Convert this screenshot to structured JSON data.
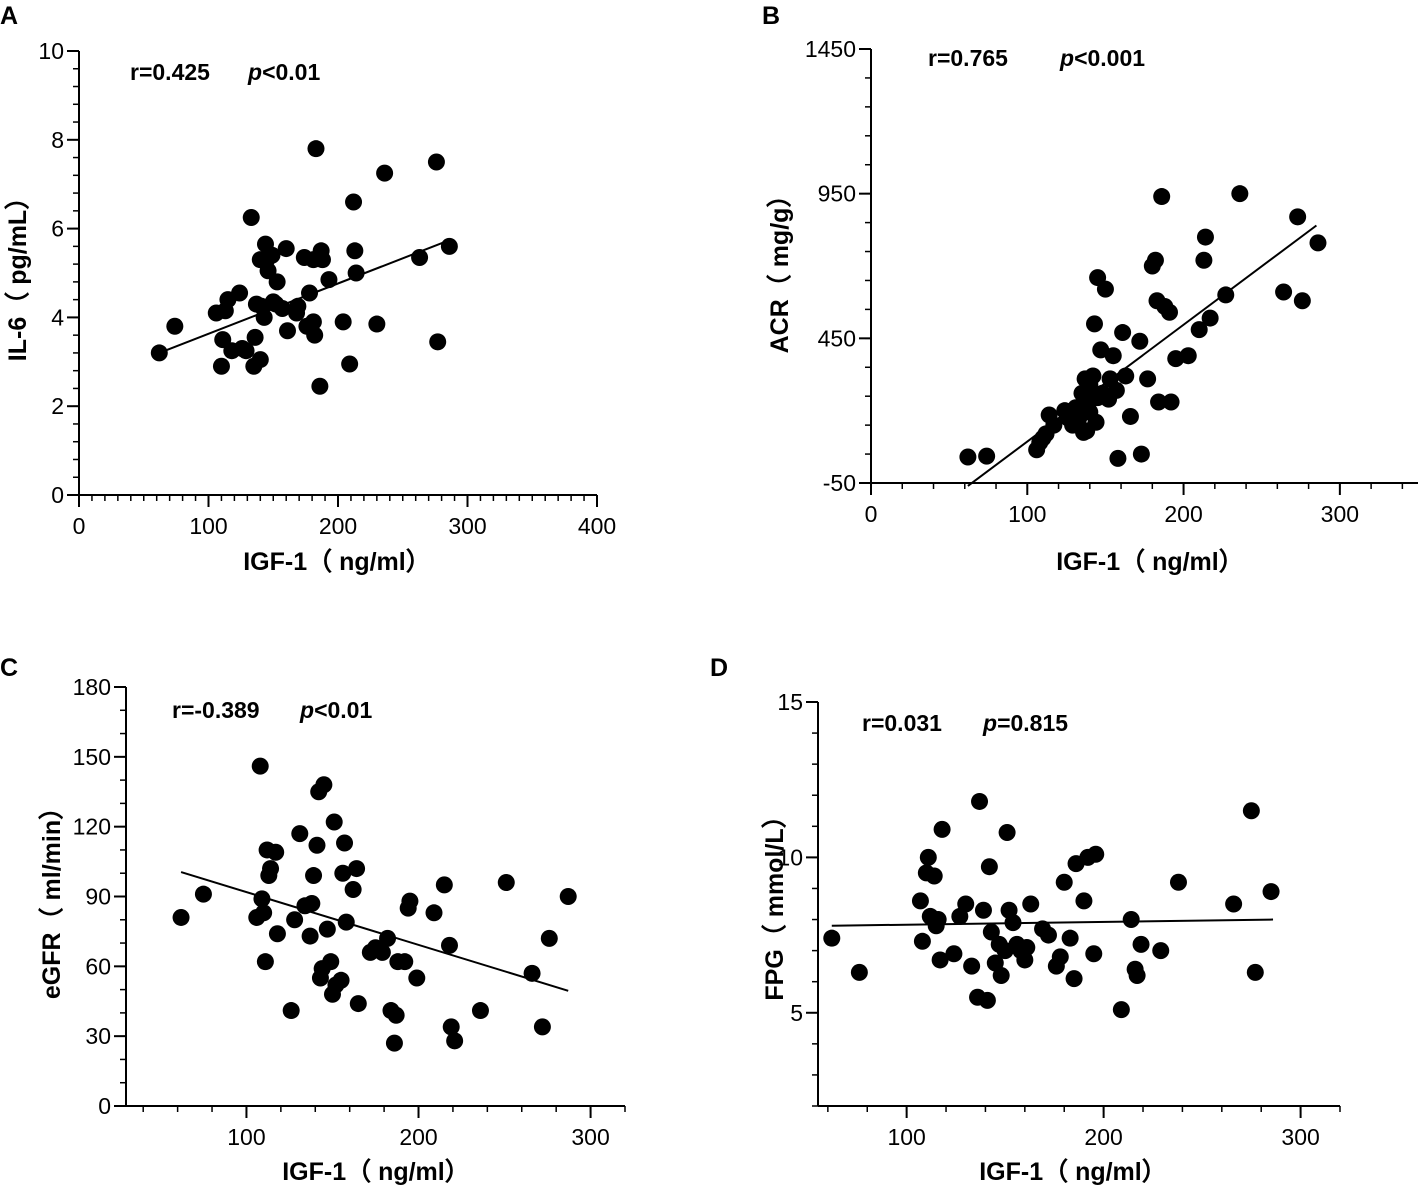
{
  "chart_data": [
    {
      "panel": "A",
      "type": "scatter",
      "title": "",
      "xlabel": "IGF-1（ ng/ml）",
      "ylabel": "IL-6（ pg/mL）",
      "xlim": [
        0,
        400
      ],
      "ylim": [
        0,
        10
      ],
      "xticks": [
        0,
        100,
        200,
        300,
        400
      ],
      "yticks": [
        0,
        2,
        4,
        6,
        8,
        10
      ],
      "grid": false,
      "annotation": {
        "r": "r=0.425",
        "p_symbol": "p",
        "p_value": "<0.01"
      },
      "regression": {
        "x": [
          62,
          287
        ],
        "y": [
          3.2,
          5.75
        ]
      },
      "points": [
        [
          62,
          3.2
        ],
        [
          74,
          3.8
        ],
        [
          106,
          4.1
        ],
        [
          110,
          2.9
        ],
        [
          111,
          3.5
        ],
        [
          113,
          4.15
        ],
        [
          115,
          4.4
        ],
        [
          118,
          3.25
        ],
        [
          124,
          4.55
        ],
        [
          126,
          3.3
        ],
        [
          129,
          3.25
        ],
        [
          133,
          6.25
        ],
        [
          135,
          2.9
        ],
        [
          136,
          3.55
        ],
        [
          137,
          4.3
        ],
        [
          140,
          3.05
        ],
        [
          140,
          5.3
        ],
        [
          141,
          4.25
        ],
        [
          143,
          4.0
        ],
        [
          144,
          5.65
        ],
        [
          145,
          5.3
        ],
        [
          146,
          5.05
        ],
        [
          149,
          5.4
        ],
        [
          150,
          4.35
        ],
        [
          152,
          4.3
        ],
        [
          153,
          4.8
        ],
        [
          157,
          4.2
        ],
        [
          160,
          5.55
        ],
        [
          161,
          3.7
        ],
        [
          168,
          4.1
        ],
        [
          169,
          4.25
        ],
        [
          174,
          5.35
        ],
        [
          176,
          3.8
        ],
        [
          178,
          4.55
        ],
        [
          181,
          3.9
        ],
        [
          181,
          5.3
        ],
        [
          182,
          3.6
        ],
        [
          183,
          7.8
        ],
        [
          186,
          2.45
        ],
        [
          187,
          5.5
        ],
        [
          188,
          5.3
        ],
        [
          193,
          4.85
        ],
        [
          204,
          3.9
        ],
        [
          209,
          2.95
        ],
        [
          212,
          6.6
        ],
        [
          213,
          5.5
        ],
        [
          214,
          5.0
        ],
        [
          230,
          3.85
        ],
        [
          236,
          7.25
        ],
        [
          263,
          5.35
        ],
        [
          276,
          7.5
        ],
        [
          277,
          3.45
        ],
        [
          286,
          5.6
        ]
      ]
    },
    {
      "panel": "B",
      "type": "scatter",
      "title": "",
      "xlabel": "IGF-1（ ng/ml）",
      "ylabel": "ACR（ mg/g）",
      "xlim": [
        0,
        350
      ],
      "ylim": [
        -50,
        1450
      ],
      "xticks": [
        0,
        100,
        200,
        300
      ],
      "yticks": [
        -50,
        450,
        950,
        1450
      ],
      "grid": false,
      "annotation": {
        "r": "r=0.765",
        "p_symbol": "p",
        "p_value": "<0.001"
      },
      "regression": {
        "x": [
          62,
          285
        ],
        "y": [
          -60,
          840
        ]
      },
      "points": [
        [
          62,
          40
        ],
        [
          74,
          43
        ],
        [
          106,
          65
        ],
        [
          108,
          90
        ],
        [
          110,
          105
        ],
        [
          112,
          120
        ],
        [
          114,
          185
        ],
        [
          117,
          150
        ],
        [
          124,
          200
        ],
        [
          126,
          175
        ],
        [
          129,
          150
        ],
        [
          131,
          210
        ],
        [
          133,
          175
        ],
        [
          135,
          260
        ],
        [
          136,
          125
        ],
        [
          137,
          310
        ],
        [
          138,
          130
        ],
        [
          139,
          225
        ],
        [
          140,
          290
        ],
        [
          140,
          195
        ],
        [
          141,
          240
        ],
        [
          142,
          320
        ],
        [
          143,
          500
        ],
        [
          144,
          160
        ],
        [
          145,
          245
        ],
        [
          145,
          660
        ],
        [
          147,
          410
        ],
        [
          148,
          260
        ],
        [
          150,
          620
        ],
        [
          152,
          240
        ],
        [
          153,
          310
        ],
        [
          155,
          390
        ],
        [
          157,
          270
        ],
        [
          158,
          35
        ],
        [
          161,
          470
        ],
        [
          163,
          320
        ],
        [
          166,
          180
        ],
        [
          172,
          440
        ],
        [
          173,
          50
        ],
        [
          177,
          310
        ],
        [
          180,
          700
        ],
        [
          182,
          720
        ],
        [
          183,
          580
        ],
        [
          184,
          230
        ],
        [
          186,
          940
        ],
        [
          188,
          560
        ],
        [
          191,
          540
        ],
        [
          192,
          230
        ],
        [
          195,
          380
        ],
        [
          203,
          390
        ],
        [
          210,
          480
        ],
        [
          213,
          720
        ],
        [
          214,
          800
        ],
        [
          217,
          520
        ],
        [
          227,
          600
        ],
        [
          236,
          950
        ],
        [
          264,
          610
        ],
        [
          273,
          870
        ],
        [
          276,
          580
        ],
        [
          286,
          780
        ]
      ]
    },
    {
      "panel": "C",
      "type": "scatter",
      "title": "",
      "xlabel": "IGF-1（ ng/ml）",
      "ylabel": "eGFR（ ml/min）",
      "xlim": [
        30,
        320
      ],
      "ylim": [
        0,
        180
      ],
      "xticks": [
        100,
        200,
        300
      ],
      "yticks": [
        0,
        30,
        60,
        90,
        120,
        150,
        180
      ],
      "grid": false,
      "annotation": {
        "r": "r=-0.389",
        "p_symbol": "p",
        "p_value": "<0.01"
      },
      "regression": {
        "x": [
          62,
          287
        ],
        "y": [
          100.5,
          49.5
        ]
      },
      "points": [
        [
          62,
          81
        ],
        [
          75,
          91
        ],
        [
          106,
          81
        ],
        [
          108,
          146
        ],
        [
          109,
          89
        ],
        [
          110,
          83
        ],
        [
          111,
          62
        ],
        [
          112,
          110
        ],
        [
          113,
          99
        ],
        [
          114,
          102
        ],
        [
          117,
          109
        ],
        [
          118,
          74
        ],
        [
          126,
          41
        ],
        [
          128,
          80
        ],
        [
          131,
          117
        ],
        [
          134,
          86
        ],
        [
          137,
          73
        ],
        [
          138,
          87
        ],
        [
          139,
          99
        ],
        [
          141,
          112
        ],
        [
          142,
          135
        ],
        [
          143,
          55
        ],
        [
          144,
          59
        ],
        [
          145,
          138
        ],
        [
          147,
          76
        ],
        [
          149,
          62
        ],
        [
          150,
          48
        ],
        [
          151,
          122
        ],
        [
          152,
          52
        ],
        [
          155,
          54
        ],
        [
          156,
          100
        ],
        [
          157,
          113
        ],
        [
          158,
          79
        ],
        [
          162,
          93
        ],
        [
          164,
          102
        ],
        [
          165,
          44
        ],
        [
          172,
          66
        ],
        [
          175,
          68
        ],
        [
          179,
          66
        ],
        [
          182,
          72
        ],
        [
          184,
          41
        ],
        [
          186,
          27
        ],
        [
          187,
          39
        ],
        [
          188,
          62
        ],
        [
          192,
          62
        ],
        [
          194,
          85
        ],
        [
          195,
          88
        ],
        [
          199,
          55
        ],
        [
          209,
          83
        ],
        [
          215,
          95
        ],
        [
          218,
          69
        ],
        [
          219,
          34
        ],
        [
          221,
          28
        ],
        [
          236,
          41
        ],
        [
          251,
          96
        ],
        [
          266,
          57
        ],
        [
          272,
          34
        ],
        [
          276,
          72
        ],
        [
          287,
          90
        ]
      ]
    },
    {
      "panel": "D",
      "type": "scatter",
      "title": "",
      "xlabel": "IGF-1（ ng/ml）",
      "ylabel": "FPG（ mmol/L）",
      "xlim": [
        55,
        320
      ],
      "ylim": [
        2,
        15
      ],
      "xticks": [
        100,
        200,
        300
      ],
      "yticks": [
        5,
        10,
        15
      ],
      "grid": false,
      "annotation": {
        "r": "r=0.031",
        "p_symbol": "p",
        "p_value": "=0.815"
      },
      "regression": {
        "x": [
          62,
          286
        ],
        "y": [
          7.8,
          8.0
        ]
      },
      "points": [
        [
          62,
          7.4
        ],
        [
          76,
          6.3
        ],
        [
          107,
          8.6
        ],
        [
          108,
          7.3
        ],
        [
          110,
          9.5
        ],
        [
          111,
          10.0
        ],
        [
          112,
          8.1
        ],
        [
          114,
          9.4
        ],
        [
          115,
          7.8
        ],
        [
          116,
          8.0
        ],
        [
          117,
          6.7
        ],
        [
          118,
          10.9
        ],
        [
          124,
          6.9
        ],
        [
          127,
          8.1
        ],
        [
          130,
          8.5
        ],
        [
          133,
          6.5
        ],
        [
          136,
          5.5
        ],
        [
          137,
          11.8
        ],
        [
          139,
          8.3
        ],
        [
          141,
          5.4
        ],
        [
          142,
          9.7
        ],
        [
          143,
          7.6
        ],
        [
          145,
          6.6
        ],
        [
          147,
          7.2
        ],
        [
          148,
          6.2
        ],
        [
          150,
          7.0
        ],
        [
          151,
          10.8
        ],
        [
          152,
          8.3
        ],
        [
          154,
          7.9
        ],
        [
          156,
          7.2
        ],
        [
          158,
          7.0
        ],
        [
          160,
          6.7
        ],
        [
          161,
          7.1
        ],
        [
          163,
          8.5
        ],
        [
          169,
          7.7
        ],
        [
          172,
          7.5
        ],
        [
          176,
          6.5
        ],
        [
          178,
          6.8
        ],
        [
          180,
          9.2
        ],
        [
          183,
          7.4
        ],
        [
          185,
          6.1
        ],
        [
          186,
          9.8
        ],
        [
          190,
          8.6
        ],
        [
          192,
          10.0
        ],
        [
          195,
          6.9
        ],
        [
          196,
          10.1
        ],
        [
          209,
          5.1
        ],
        [
          214,
          8.0
        ],
        [
          216,
          6.4
        ],
        [
          217,
          6.2
        ],
        [
          219,
          7.2
        ],
        [
          229,
          7.0
        ],
        [
          238,
          9.2
        ],
        [
          266,
          8.5
        ],
        [
          275,
          11.5
        ],
        [
          277,
          6.3
        ],
        [
          285,
          8.9
        ]
      ]
    }
  ]
}
